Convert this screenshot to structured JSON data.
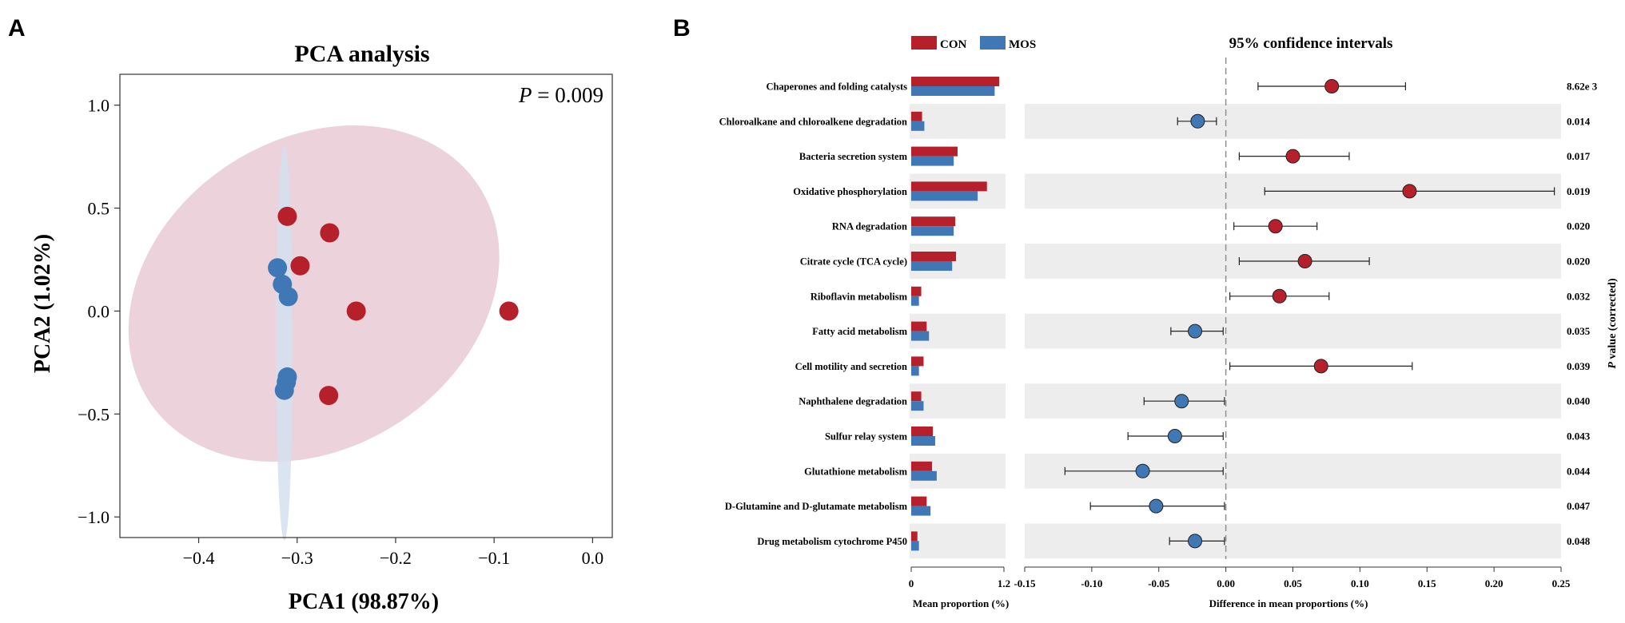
{
  "chart_data": [
    {
      "type": "scatter",
      "panel_label": "A",
      "title": "PCA analysis",
      "xlabel": "PCA1 (98.87%)",
      "ylabel": "PCA2 (1.02%)",
      "annotation": {
        "italic": "P",
        "rest": " = 0.009"
      },
      "xlim": [
        -0.48,
        0.02
      ],
      "ylim": [
        -1.1,
        1.15
      ],
      "xticks": [
        -0.4,
        -0.3,
        -0.2,
        -0.1,
        0.0
      ],
      "xtick_labels": [
        "−0.4",
        "−0.3",
        "−0.2",
        "−0.1",
        "0.0"
      ],
      "yticks": [
        1.0,
        0.5,
        0.0,
        -0.5,
        -1.0
      ],
      "ytick_labels": [
        "1.0",
        "0.5",
        "0.0",
        "−0.5",
        "−1.0"
      ],
      "series": [
        {
          "name": "CON",
          "color": "#B5202A",
          "points": [
            {
              "x": -0.31,
              "y": 0.46
            },
            {
              "x": -0.267,
              "y": 0.38
            },
            {
              "x": -0.297,
              "y": 0.22
            },
            {
              "x": -0.24,
              "y": 0.0
            },
            {
              "x": -0.085,
              "y": 0.0
            },
            {
              "x": -0.268,
              "y": -0.41
            }
          ],
          "ellipse": {
            "cx": -0.283,
            "cy": 0.085,
            "rx": 0.2,
            "ry": 0.75,
            "angle_deg": -33
          },
          "ellipse_color": "#E4C3CF"
        },
        {
          "name": "MOS",
          "color": "#3F78B4",
          "points": [
            {
              "x": -0.32,
              "y": 0.21
            },
            {
              "x": -0.315,
              "y": 0.13
            },
            {
              "x": -0.309,
              "y": 0.07
            },
            {
              "x": -0.31,
              "y": -0.32
            },
            {
              "x": -0.311,
              "y": -0.345
            },
            {
              "x": -0.313,
              "y": -0.385
            }
          ],
          "ellipse": {
            "cx": -0.313,
            "cy": -0.155,
            "rx": 0.0085,
            "ry": 0.96,
            "angle_deg": 0
          },
          "ellipse_color": "#D4E1EF"
        }
      ]
    },
    {
      "type": "bar",
      "panel_label": "B",
      "legend": [
        {
          "name": "CON",
          "color": "#B5202A"
        },
        {
          "name": "MOS",
          "color": "#3F78B4"
        }
      ],
      "xlabel": "Mean proportion (%)",
      "xlim": [
        0,
        1.2
      ],
      "tick_labels": [
        "0",
        "1.2"
      ],
      "categories": [
        "Chaperones and folding catalysts",
        "Chloroalkane and chloroalkene degradation",
        "Bacteria secretion system",
        "Oxidative phosphorylation",
        "RNA degradation",
        "Citrate cycle (TCA cycle)",
        "Riboflavin metabolism",
        "Fatty acid metabolism",
        "Cell motility and secretion",
        "Naphthalene degradation",
        "Sulfur relay system",
        "Glutathione metabolism",
        "D-Glutamine and D-glutamate metabolism",
        "Drug metabolism cytochrome P450"
      ],
      "series": [
        {
          "name": "CON",
          "values": [
            1.14,
            0.14,
            0.6,
            0.98,
            0.57,
            0.58,
            0.13,
            0.2,
            0.16,
            0.13,
            0.28,
            0.27,
            0.2,
            0.08
          ]
        },
        {
          "name": "MOS",
          "values": [
            1.08,
            0.17,
            0.55,
            0.86,
            0.55,
            0.53,
            0.1,
            0.23,
            0.1,
            0.16,
            0.31,
            0.33,
            0.25,
            0.1
          ]
        }
      ]
    },
    {
      "type": "scatter",
      "subtype": "errorbar",
      "title": "95% confidence intervals",
      "xlabel": "Difference in mean proportions (%)",
      "xlim": [
        -0.15,
        0.25
      ],
      "xticks": [
        -0.15,
        -0.1,
        -0.05,
        0.0,
        0.05,
        0.1,
        0.15,
        0.2,
        0.25
      ],
      "xtick_labels": [
        "-0.15",
        "-0.10",
        "-0.05",
        "0.00",
        "0.05",
        "0.10",
        "0.15",
        "0.20",
        "0.25"
      ],
      "right_axis_label": {
        "italic": "P",
        "rest": " value (corrected)"
      },
      "p_values": [
        "8.62e 3",
        "0.014",
        "0.017",
        "0.019",
        "0.020",
        "0.020",
        "0.032",
        "0.035",
        "0.039",
        "0.040",
        "0.043",
        "0.044",
        "0.047",
        "0.048"
      ],
      "estimates": [
        0.079,
        -0.021,
        0.05,
        0.137,
        0.037,
        0.059,
        0.04,
        -0.023,
        0.071,
        -0.033,
        -0.038,
        -0.062,
        -0.052,
        -0.023
      ],
      "ci_low": [
        0.024,
        -0.036,
        0.01,
        0.029,
        0.006,
        0.01,
        0.003,
        -0.041,
        0.003,
        -0.061,
        -0.073,
        -0.12,
        -0.101,
        -0.042
      ],
      "ci_high": [
        0.134,
        -0.007,
        0.092,
        0.245,
        0.068,
        0.107,
        0.077,
        -0.002,
        0.139,
        -0.001,
        -0.002,
        -0.002,
        -0.001,
        -0.001
      ],
      "point_colors": [
        "#B5202A",
        "#3F78B4",
        "#B5202A",
        "#B5202A",
        "#B5202A",
        "#B5202A",
        "#B5202A",
        "#3F78B4",
        "#B5202A",
        "#3F78B4",
        "#3F78B4",
        "#3F78B4",
        "#3F78B4",
        "#3F78B4"
      ]
    }
  ]
}
